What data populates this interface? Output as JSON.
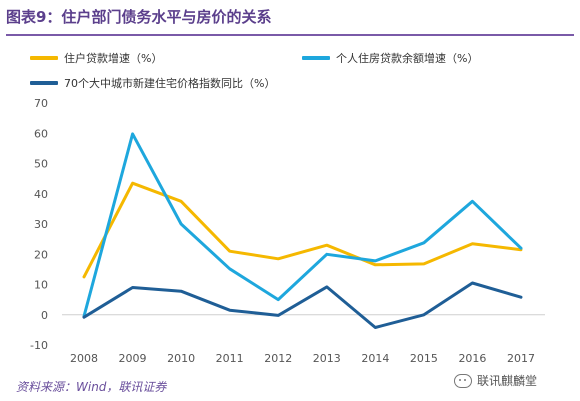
{
  "header": {
    "title": "图表9：住户部门债务水平与房价的关系"
  },
  "legend": {
    "items": [
      {
        "label": "住户贷款增速（%）",
        "color": "#f5b800"
      },
      {
        "label": "个人住房贷款余额增速（%）",
        "color": "#1ea7dd"
      },
      {
        "label": "70个大中城市新建住宅价格指数同比（%）",
        "color": "#1f5e96"
      }
    ]
  },
  "chart_data": {
    "type": "line",
    "x": [
      "2008",
      "2009",
      "2010",
      "2011",
      "2012",
      "2013",
      "2014",
      "2015",
      "2016",
      "2017"
    ],
    "series": [
      {
        "name": "住户贷款增速（%）",
        "color": "#f5b800",
        "values": [
          12.5,
          43.5,
          37.5,
          21,
          18.5,
          23,
          16.5,
          16.8,
          23.5,
          21.5
        ]
      },
      {
        "name": "个人住房贷款余额增速（%）",
        "color": "#1ea7dd",
        "values": [
          -0.5,
          59.8,
          30,
          15.2,
          5,
          20,
          17.8,
          23.8,
          37.5,
          22
        ]
      },
      {
        "name": "70个大中城市新建住宅价格指数同比（%）",
        "color": "#1f5e96",
        "values": [
          -0.8,
          9,
          7.8,
          1.5,
          -0.2,
          9.2,
          -4.2,
          0,
          10.5,
          5.8
        ]
      }
    ],
    "yticks": [
      -10,
      0,
      10,
      20,
      30,
      40,
      50,
      60,
      70
    ],
    "ylim": [
      -10,
      70
    ],
    "grid": false,
    "legend_position": "top"
  },
  "footer": {
    "source": "资料来源：Wind，联讯证券",
    "watermark": "联讯麒麟堂"
  }
}
